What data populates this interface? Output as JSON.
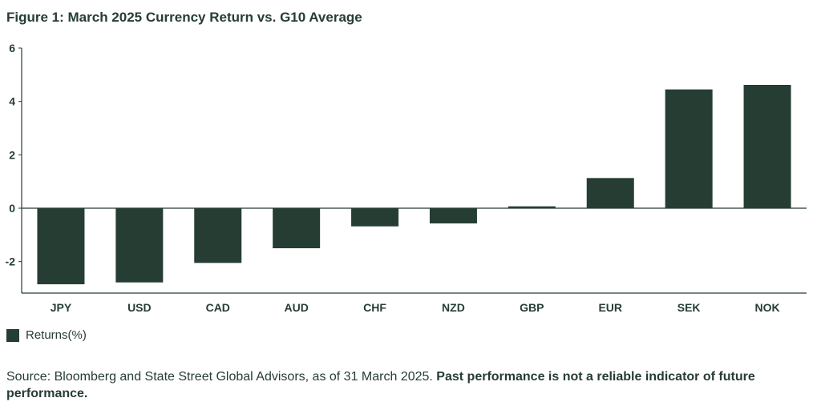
{
  "header": {
    "title": "Figure 1: March 2025 Currency Return vs. G10 Average"
  },
  "colors": {
    "bar": "#263d33",
    "axis": "#263d33",
    "text": "#263d33"
  },
  "chart_data": {
    "type": "bar",
    "title": "Figure 1: March 2025 Currency Return vs. G10 Average",
    "xlabel": "",
    "ylabel": "",
    "categories": [
      "JPY",
      "USD",
      "CAD",
      "AUD",
      "CHF",
      "NZD",
      "GBP",
      "EUR",
      "SEK",
      "NOK"
    ],
    "series": [
      {
        "name": "Returns(%)",
        "values": [
          -2.85,
          -2.78,
          -2.05,
          -1.5,
          -0.68,
          -0.57,
          0.07,
          1.13,
          4.45,
          4.62
        ]
      }
    ],
    "ylim": [
      -3.2,
      6
    ],
    "yticks": [
      6,
      4,
      2,
      0,
      -2
    ],
    "ytick_labels": [
      "6",
      "4",
      "2",
      "0",
      "-2"
    ],
    "grid": false,
    "legend": "bottom-left"
  },
  "legend": {
    "label": "Returns(%)"
  },
  "source": {
    "text": "Source: Bloomberg and State Street Global Advisors, as of 31 March 2025. ",
    "bold": "Past performance is not a reliable indicator of future performance."
  }
}
